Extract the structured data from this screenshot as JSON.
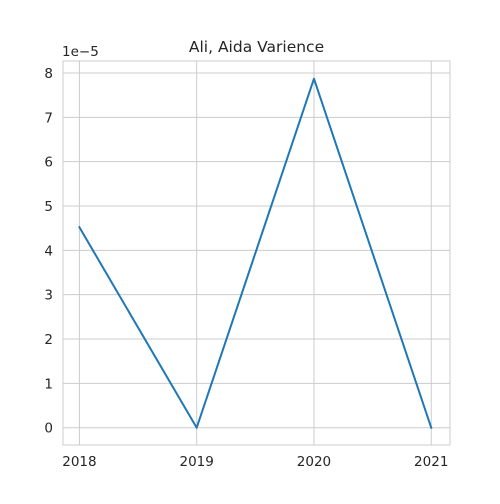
{
  "chart_data": {
    "type": "line",
    "title": "Ali, Aida Varience",
    "xlabel": "",
    "ylabel": "",
    "y_offset_label": "1e−5",
    "x": [
      2018,
      2019,
      2020,
      2021
    ],
    "x_tick_labels": [
      "2018",
      "2019",
      "2020",
      "2021"
    ],
    "series": [
      {
        "values": [
          4.52e-05,
          0.0,
          7.87e-05,
          0.0
        ],
        "color": "#1f77b4"
      }
    ],
    "xlim": [
      2017.86,
      2021.16
    ],
    "ylim": [
      -3.9e-06,
      8.27e-05
    ],
    "y_ticks": [
      0,
      1e-05,
      2e-05,
      3e-05,
      4e-05,
      5e-05,
      6e-05,
      7e-05,
      8e-05
    ],
    "y_tick_labels": [
      "0",
      "1",
      "2",
      "3",
      "4",
      "5",
      "6",
      "7",
      "8"
    ],
    "grid": true,
    "grid_color": "#cccccc",
    "background": "#ffffff"
  }
}
